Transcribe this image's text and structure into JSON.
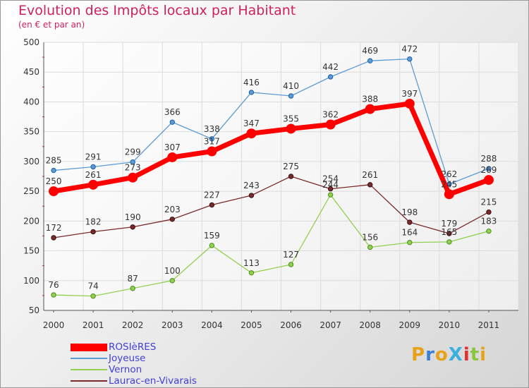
{
  "title": "Evolution des Impôts locaux par Habitant",
  "subtitle": "(en € et par an)",
  "logo_text": "ProXiti",
  "logo_colors": [
    "#e8a21a",
    "#3a7fd1",
    "#e8a21a",
    "#3ab0e0",
    "#e23030",
    "#8cc63e",
    "#e8a21a"
  ],
  "chart_data": {
    "type": "line",
    "x": [
      "2000",
      "2001",
      "2002",
      "2003",
      "2004",
      "2005",
      "2006",
      "2007",
      "2008",
      "2009",
      "2010",
      "2011"
    ],
    "ylim": [
      50,
      500
    ],
    "yticks": [
      "50",
      "100",
      "150",
      "200",
      "250",
      "300",
      "350",
      "400",
      "450",
      "500"
    ],
    "grid": true,
    "legend_position": "bottom-left",
    "series": [
      {
        "name": "Joyeuse",
        "color": "#5b9bd5",
        "values": [
          285,
          291,
          299,
          366,
          338,
          416,
          410,
          442,
          469,
          472,
          262,
          288
        ],
        "labels": [
          "285",
          "291",
          "299",
          "366",
          "338",
          "416",
          "410",
          "442",
          "469",
          "472",
          "262",
          "288"
        ]
      },
      {
        "name": "Laurac-en-Vivarais",
        "color": "#7a2a2a",
        "values": [
          172,
          182,
          190,
          203,
          227,
          243,
          275,
          254,
          261,
          198,
          179,
          215
        ],
        "labels": [
          "172",
          "182",
          "190",
          "203",
          "227",
          "243",
          "275",
          "254",
          "261",
          "198",
          "179",
          "215"
        ]
      },
      {
        "name": "Vernon",
        "color": "#92d050",
        "values": [
          76,
          74,
          87,
          100,
          159,
          113,
          127,
          244,
          156,
          164,
          165,
          183
        ],
        "labels": [
          "76",
          "74",
          "87",
          "100",
          "159",
          "113",
          "127",
          "244",
          "156",
          "164",
          "165",
          "183"
        ]
      },
      {
        "name": "ROSIèRES",
        "color": "#ff0000",
        "values": [
          250,
          261,
          273,
          307,
          317,
          347,
          355,
          362,
          388,
          397,
          245,
          269
        ],
        "labels": [
          "250",
          "261",
          "273",
          "307",
          "317",
          "347",
          "355",
          "362",
          "388",
          "397",
          "245",
          "269"
        ]
      }
    ],
    "legend_order": [
      "ROSIèRES",
      "Joyeuse",
      "Vernon",
      "Laurac-en-Vivarais"
    ]
  }
}
